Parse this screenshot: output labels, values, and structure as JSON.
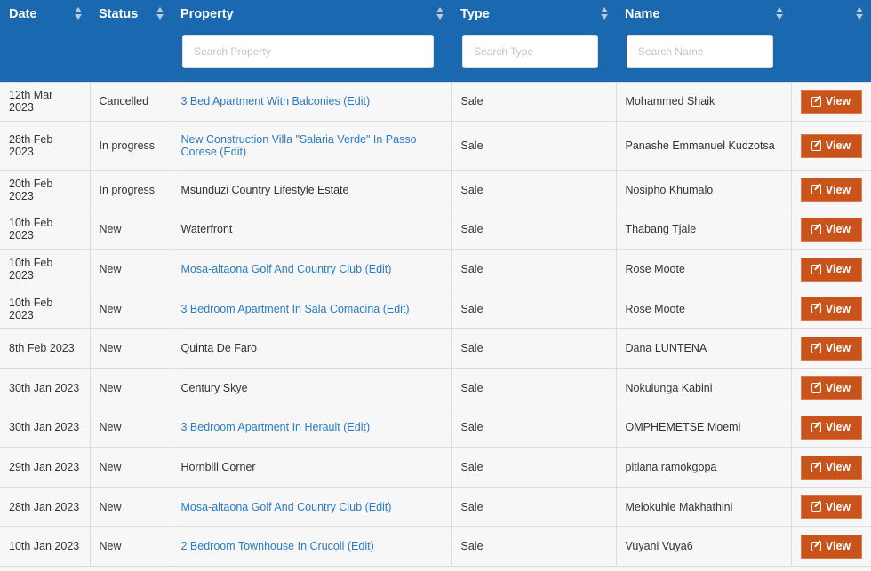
{
  "headers": {
    "date": "Date",
    "status": "Status",
    "property": "Property",
    "type": "Type",
    "name": "Name"
  },
  "filters": {
    "property_placeholder": "Search Property",
    "type_placeholder": "Search Type",
    "name_placeholder": "Search Name"
  },
  "colors": {
    "header": "#1a69b0",
    "button": "#c9541b",
    "link": "#2a7bc4"
  },
  "edit_label": "(Edit)",
  "view_label": "View",
  "rows": [
    {
      "date": "12th Mar 2023",
      "status": "Cancelled",
      "property": "3 Bed Apartment With Balconies",
      "linked": true,
      "type": "Sale",
      "name": "Mohammed Shaik"
    },
    {
      "date": "28th Feb 2023",
      "status": "In progress",
      "property": "New Construction Villa \"Salaria Verde\" In Passo Corese",
      "linked": true,
      "type": "Sale",
      "name": "Panashe Emmanuel Kudzotsa"
    },
    {
      "date": "20th Feb 2023",
      "status": "In progress",
      "property": "Msunduzi Country Lifestyle Estate",
      "linked": false,
      "type": "Sale",
      "name": "Nosipho Khumalo"
    },
    {
      "date": "10th Feb 2023",
      "status": "New",
      "property": "Waterfront",
      "linked": false,
      "type": "Sale",
      "name": "Thabang Tjale"
    },
    {
      "date": "10th Feb 2023",
      "status": "New",
      "property": "Mosa-altaona Golf And Country Club",
      "linked": true,
      "type": "Sale",
      "name": "Rose Moote"
    },
    {
      "date": "10th Feb 2023",
      "status": "New",
      "property": "3 Bedroom Apartment In Sala Comacina",
      "linked": true,
      "type": "Sale",
      "name": "Rose Moote"
    },
    {
      "date": "8th Feb 2023",
      "status": "New",
      "property": "Quinta De Faro",
      "linked": false,
      "type": "Sale",
      "name": "Dana LUNTENA"
    },
    {
      "date": "30th Jan 2023",
      "status": "New",
      "property": "Century Skye",
      "linked": false,
      "type": "Sale",
      "name": "Nokulunga Kabini"
    },
    {
      "date": "30th Jan 2023",
      "status": "New",
      "property": "3 Bedroom Apartment In Herault",
      "linked": true,
      "type": "Sale",
      "name": "OMPHEMETSE Moemi"
    },
    {
      "date": "29th Jan 2023",
      "status": "New",
      "property": "Hornbill Corner",
      "linked": false,
      "type": "Sale",
      "name": "pitlana ramokgopa"
    },
    {
      "date": "28th Jan 2023",
      "status": "New",
      "property": "Mosa-altaona Golf And Country Club",
      "linked": true,
      "type": "Sale",
      "name": "Melokuhle Makhathini"
    },
    {
      "date": "10th Jan 2023",
      "status": "New",
      "property": "2 Bedroom Townhouse In Crucoli",
      "linked": true,
      "type": "Sale",
      "name": "Vuyani Vuya6"
    }
  ]
}
